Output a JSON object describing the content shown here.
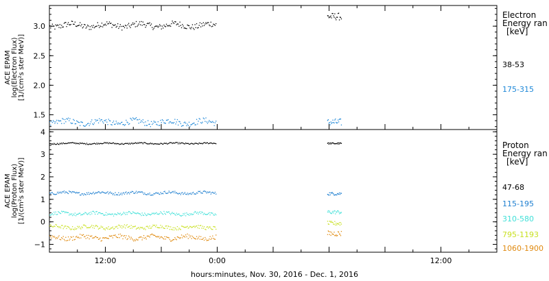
{
  "xlabel": "hours:minutes, Nov. 30, 2016 - Dec. 1, 2016",
  "x_tick_labels": [
    "12:00",
    "0:00",
    "12:00"
  ],
  "chart_data": [
    {
      "type": "scatter",
      "panel": "electron",
      "ylabel_lines": [
        "ACE EPAM",
        "log(Electron Flux)",
        "[1/(cm²s ster MeV)]"
      ],
      "ylim": [
        1.25,
        3.35
      ],
      "yticks": [
        {
          "value": 1.5,
          "label": "1.5"
        },
        {
          "value": 2.0,
          "label": "2.0"
        },
        {
          "value": 2.5,
          "label": "2.5"
        },
        {
          "value": 3.0,
          "label": "3.0"
        }
      ],
      "x_hours": [
        4,
        53
      ],
      "legend_title_lines": [
        "Electron",
        "Energy ran",
        "[keV]"
      ],
      "series": [
        {
          "name": "38-53",
          "color": "#000000",
          "level": 3.02,
          "amp": 0.05,
          "late_level": 3.17
        },
        {
          "name": "175-315",
          "color": "#1e88d8",
          "level": 1.38,
          "amp": 0.05,
          "late_level": 1.38
        }
      ]
    },
    {
      "type": "scatter",
      "panel": "proton",
      "ylabel_lines": [
        "ACE EPAM",
        "log(Proton Flux)",
        "[1/(cm²s ster MeV)]"
      ],
      "ylim": [
        -1.35,
        4.1
      ],
      "yticks": [
        {
          "value": -1,
          "label": "−1"
        },
        {
          "value": 0,
          "label": "0"
        },
        {
          "value": 1,
          "label": "1"
        },
        {
          "value": 2,
          "label": "2"
        },
        {
          "value": 3,
          "label": "3"
        },
        {
          "value": 4,
          "label": "4"
        }
      ],
      "x_hours": [
        4,
        53
      ],
      "legend_title_lines": [
        "Proton",
        "Energy ran",
        "[keV]"
      ],
      "series": [
        {
          "name": "47-68",
          "color": "#000000",
          "level": 3.5,
          "amp": 0.03,
          "late_level": 3.5
        },
        {
          "name": "115-195",
          "color": "#1e7fd0",
          "level": 1.3,
          "amp": 0.06,
          "late_level": 1.27
        },
        {
          "name": "310-580",
          "color": "#40e0d8",
          "level": 0.38,
          "amp": 0.07,
          "late_level": 0.45
        },
        {
          "name": "795-1193",
          "color": "#c8e020",
          "level": -0.22,
          "amp": 0.08,
          "late_level": -0.05
        },
        {
          "name": "1060-1900",
          "color": "#e08a10",
          "level": -0.68,
          "amp": 0.1,
          "late_level": -0.5
        }
      ]
    }
  ]
}
